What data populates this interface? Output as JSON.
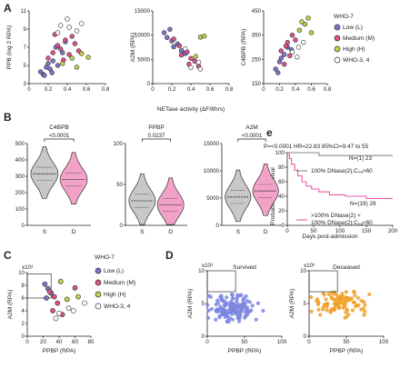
{
  "panels": {
    "A": "A",
    "B": "B",
    "C": "C",
    "D": "D",
    "E": "e"
  },
  "legend_A": {
    "title": "WHO-7",
    "items": [
      {
        "label": "Low (L)",
        "color": "#7b74c9"
      },
      {
        "label": "Medium (M)",
        "color": "#e0508a"
      },
      {
        "label": "High (H)",
        "color": "#c3cf4a"
      },
      {
        "label": "WHO-3, 4",
        "color": "#ffffff"
      }
    ]
  },
  "legend_C": {
    "title": "WHO-7",
    "items": [
      {
        "label": "Low (L)",
        "color": "#7b74c9"
      },
      {
        "label": "Medium (M)",
        "color": "#e0508a"
      },
      {
        "label": "High (H)",
        "color": "#c3cf4a"
      },
      {
        "label": "WHO-3, 4",
        "color": "#ffffff"
      }
    ]
  },
  "panelA_shared_xlabel": "NETase activity (ΔF/8hrs)",
  "panelD_exponent": "x10³",
  "panelC_exponent": "x10³",
  "survival": {
    "stats": "P=<0.0001   HR=22.83   95%CI=9.47 to 55",
    "ylabel": "Probability of Survival",
    "xlabel": "Days post-admission",
    "n_top": "N=(1) 23",
    "n_bottom": "N=(19) 29",
    "legend_top": "100% DNase(2);C₀ₐ>60",
    "legend_bottom_1": ">100% DNase(2) +",
    "legend_bottom_2": "100% DNase(2);C₀ₐ<60"
  },
  "chart_data": [
    {
      "id": "A1",
      "type": "scatter",
      "xlabel": "",
      "ylabel": "PPB (log 2 RPA)",
      "xlim": [
        0,
        0.8
      ],
      "ylim": [
        3,
        11
      ],
      "xticks": [
        "0",
        "0.2",
        "0.4",
        "0.6",
        "0.8"
      ],
      "yticks": [
        "3",
        "5",
        "7",
        "9",
        "11"
      ],
      "series": [
        {
          "name": "Low (L)",
          "points": [
            [
              0.12,
              4.3
            ],
            [
              0.15,
              4.0
            ],
            [
              0.18,
              4.8
            ],
            [
              0.2,
              5.2
            ],
            [
              0.22,
              4.6
            ],
            [
              0.25,
              5.5
            ],
            [
              0.3,
              5.0
            ],
            [
              0.35,
              6.4
            ],
            [
              0.16,
              3.9
            ],
            [
              0.28,
              7.0
            ],
            [
              0.38,
              7.6
            ],
            [
              0.24,
              4.2
            ]
          ]
        },
        {
          "name": "Medium (M)",
          "points": [
            [
              0.2,
              5.8
            ],
            [
              0.25,
              6.4
            ],
            [
              0.3,
              7.2
            ],
            [
              0.33,
              6.8
            ],
            [
              0.38,
              7.8
            ],
            [
              0.42,
              6.2
            ],
            [
              0.48,
              7.4
            ],
            [
              0.36,
              5.6
            ],
            [
              0.45,
              8.2
            ],
            [
              0.27,
              8.4
            ],
            [
              0.52,
              6.6
            ]
          ]
        },
        {
          "name": "High (H)",
          "points": [
            [
              0.35,
              5.2
            ],
            [
              0.45,
              5.8
            ],
            [
              0.55,
              6.3
            ],
            [
              0.62,
              5.9
            ],
            [
              0.5,
              4.8
            ]
          ]
        },
        {
          "name": "WHO-3, 4",
          "points": [
            [
              0.3,
              8.6
            ],
            [
              0.42,
              9.2
            ],
            [
              0.5,
              8.8
            ],
            [
              0.4,
              10.1
            ],
            [
              0.55,
              9.6
            ],
            [
              0.33,
              9.4
            ]
          ]
        }
      ]
    },
    {
      "id": "A2",
      "type": "scatter",
      "xlabel": "NETase activity (ΔF/8hrs)",
      "ylabel": "A2M (RPA)",
      "xlim": [
        0,
        0.8
      ],
      "ylim": [
        0,
        15000
      ],
      "xticks": [
        "0",
        "0.2",
        "0.4",
        "0.6",
        "0.8"
      ],
      "yticks": [
        "0",
        "5000",
        "10000",
        "15000"
      ],
      "series": [
        {
          "name": "Low (L)",
          "points": [
            [
              0.12,
              10500
            ],
            [
              0.15,
              9500
            ],
            [
              0.2,
              8800
            ],
            [
              0.22,
              7600
            ],
            [
              0.26,
              8200
            ],
            [
              0.3,
              6800
            ],
            [
              0.34,
              6200
            ],
            [
              0.18,
              11200
            ]
          ]
        },
        {
          "name": "Medium (M)",
          "points": [
            [
              0.22,
              9200
            ],
            [
              0.28,
              7800
            ],
            [
              0.3,
              5900
            ],
            [
              0.36,
              6500
            ],
            [
              0.4,
              5200
            ],
            [
              0.44,
              4600
            ],
            [
              0.38,
              4000
            ],
            [
              0.48,
              3600
            ]
          ]
        },
        {
          "name": "High (H)",
          "points": [
            [
              0.5,
              9600
            ],
            [
              0.54,
              9800
            ],
            [
              0.45,
              5600
            ]
          ]
        },
        {
          "name": "WHO-3, 4",
          "points": [
            [
              0.4,
              3300
            ],
            [
              0.5,
              3000
            ],
            [
              0.48,
              4400
            ],
            [
              0.34,
              7200
            ]
          ]
        }
      ]
    },
    {
      "id": "A3",
      "type": "scatter",
      "xlabel": "",
      "ylabel": "C4BPB (RPA)",
      "xlim": [
        0,
        0.8
      ],
      "ylim": [
        150,
        450
      ],
      "xticks": [
        "0",
        "0.2",
        "0.4",
        "0.6",
        "0.8"
      ],
      "yticks": [
        "150",
        "250",
        "350",
        "450"
      ],
      "series": [
        {
          "name": "Low (L)",
          "points": [
            [
              0.15,
              210
            ],
            [
              0.2,
              240
            ],
            [
              0.22,
              255
            ],
            [
              0.26,
              270
            ],
            [
              0.3,
              300
            ],
            [
              0.18,
              195
            ],
            [
              0.35,
              290
            ]
          ]
        },
        {
          "name": "Medium (M)",
          "points": [
            [
              0.22,
              285
            ],
            [
              0.28,
              305
            ],
            [
              0.3,
              320
            ],
            [
              0.36,
              350
            ],
            [
              0.4,
              330
            ],
            [
              0.33,
              265
            ],
            [
              0.26,
              230
            ]
          ]
        },
        {
          "name": "High (H)",
          "points": [
            [
              0.45,
              370
            ],
            [
              0.52,
              395
            ],
            [
              0.56,
              420
            ],
            [
              0.48,
              405
            ],
            [
              0.6,
              360
            ]
          ]
        },
        {
          "name": "WHO-3, 4",
          "points": [
            [
              0.36,
              280
            ],
            [
              0.44,
              300
            ],
            [
              0.5,
              320
            ],
            [
              0.42,
              260
            ]
          ]
        }
      ]
    },
    {
      "id": "B1",
      "type": "violin",
      "title": "C4BPB",
      "pvalue": "<0.0001",
      "categories": [
        "S",
        "D"
      ],
      "ylim": [
        0,
        500
      ],
      "yticks": [
        "0",
        "100",
        "200",
        "300",
        "400",
        "500"
      ],
      "medians": [
        315,
        280
      ],
      "colors": [
        "#c8c8c8",
        "#f3a2c7"
      ]
    },
    {
      "id": "B2",
      "type": "violin",
      "title": "PPBP",
      "pvalue": "0.0237",
      "categories": [
        "S",
        "D"
      ],
      "ylim": [
        0,
        100
      ],
      "yticks": [
        "0",
        "50",
        "100"
      ],
      "medians": [
        30,
        25
      ],
      "colors": [
        "#c8c8c8",
        "#f3a2c7"
      ]
    },
    {
      "id": "B3",
      "type": "violin",
      "title": "A2M",
      "pvalue": "<0.0001",
      "categories": [
        "S",
        "D"
      ],
      "ylim": [
        0,
        15000
      ],
      "yticks": [
        "0",
        "5000",
        "10000",
        "15000"
      ],
      "medians": [
        5200,
        6300
      ],
      "colors": [
        "#c8c8c8",
        "#f3a2c7"
      ]
    },
    {
      "id": "E",
      "type": "line",
      "title": "",
      "xlim": [
        0,
        200
      ],
      "ylim": [
        0,
        100
      ],
      "xticks": [
        "0",
        "50",
        "100",
        "150",
        "200"
      ],
      "yticks": [
        "0",
        "20",
        "40",
        "60",
        "80",
        "100"
      ],
      "series": [
        {
          "name": "100% DNase(2);C₀ₐ>60",
          "color": "#8a8a8a",
          "points": [
            [
              0,
              100
            ],
            [
              60,
              100
            ],
            [
              60,
              96
            ],
            [
              210,
              96
            ]
          ]
        },
        {
          "name": ">100% DNase(2) + 100% DNase(2);C₀ₐ<60",
          "color": "#ee5aa8",
          "points": [
            [
              0,
              100
            ],
            [
              4,
              92
            ],
            [
              8,
              84
            ],
            [
              14,
              76
            ],
            [
              20,
              68
            ],
            [
              28,
              60
            ],
            [
              36,
              54
            ],
            [
              46,
              50
            ],
            [
              60,
              46
            ],
            [
              80,
              42
            ],
            [
              110,
              40
            ],
            [
              150,
              37
            ],
            [
              210,
              37
            ]
          ]
        }
      ]
    },
    {
      "id": "C",
      "type": "scatter",
      "xlabel": "PPBP (RPA)",
      "ylabel": "A2M (RPA)",
      "xlim": [
        0,
        80
      ],
      "ylim": [
        0,
        10
      ],
      "xticks": [
        "0",
        "20",
        "40",
        "60",
        "80"
      ],
      "yticks": [
        "0",
        "2",
        "4",
        "6",
        "8",
        "10"
      ],
      "series": [
        {
          "name": "Low (L)",
          "points": [
            [
              22,
              8.2
            ],
            [
              26,
              7.5
            ],
            [
              30,
              6.8
            ],
            [
              24,
              6.0
            ]
          ]
        },
        {
          "name": "Medium (M)",
          "points": [
            [
              28,
              7.0
            ],
            [
              34,
              6.2
            ],
            [
              38,
              5.2
            ],
            [
              32,
              4.0
            ],
            [
              44,
              3.4
            ],
            [
              60,
              7.6
            ]
          ]
        },
        {
          "name": "High (H)",
          "points": [
            [
              50,
              5.8
            ],
            [
              64,
              6.2
            ],
            [
              42,
              8.6
            ]
          ]
        },
        {
          "name": "WHO-3, 4",
          "points": [
            [
              40,
              3.6
            ],
            [
              52,
              4.4
            ],
            [
              58,
              4.0
            ],
            [
              36,
              2.8
            ],
            [
              72,
              5.2
            ]
          ]
        }
      ]
    },
    {
      "id": "D1",
      "type": "scatter",
      "title": "Survived",
      "xlabel": "PPBP (RPA)",
      "ylabel": "A2M (RPA)",
      "xlim": [
        0,
        100
      ],
      "ylim": [
        0,
        10
      ],
      "xticks": [
        "0",
        "50",
        "100"
      ],
      "yticks": [
        "0",
        "5",
        "10"
      ],
      "color": "#7d86e0"
    },
    {
      "id": "D2",
      "type": "scatter",
      "title": "Deceased",
      "xlabel": "PPBP (RPA)",
      "ylabel": "A2M (RPA)",
      "xlim": [
        0,
        100
      ],
      "ylim": [
        0,
        10
      ],
      "xticks": [
        "0",
        "50",
        "100"
      ],
      "yticks": [
        "0",
        "5",
        "10"
      ],
      "color": "#f0a02a"
    }
  ]
}
